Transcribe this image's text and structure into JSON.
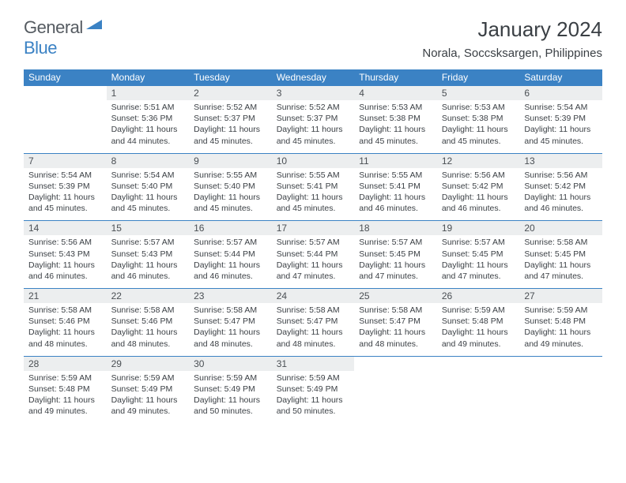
{
  "logo": {
    "general": "General",
    "blue": "Blue"
  },
  "title": "January 2024",
  "location": "Norala, Soccsksargen, Philippines",
  "colors": {
    "header_bg": "#3b82c4",
    "header_text": "#ffffff",
    "daynum_bg": "#eceeef",
    "text": "#3a3f44",
    "divider": "#3b82c4",
    "page_bg": "#ffffff"
  },
  "weekdays": [
    "Sunday",
    "Monday",
    "Tuesday",
    "Wednesday",
    "Thursday",
    "Friday",
    "Saturday"
  ],
  "weeks": [
    [
      null,
      {
        "day": "1",
        "sunrise": "Sunrise: 5:51 AM",
        "sunset": "Sunset: 5:36 PM",
        "daylight": "Daylight: 11 hours and 44 minutes."
      },
      {
        "day": "2",
        "sunrise": "Sunrise: 5:52 AM",
        "sunset": "Sunset: 5:37 PM",
        "daylight": "Daylight: 11 hours and 45 minutes."
      },
      {
        "day": "3",
        "sunrise": "Sunrise: 5:52 AM",
        "sunset": "Sunset: 5:37 PM",
        "daylight": "Daylight: 11 hours and 45 minutes."
      },
      {
        "day": "4",
        "sunrise": "Sunrise: 5:53 AM",
        "sunset": "Sunset: 5:38 PM",
        "daylight": "Daylight: 11 hours and 45 minutes."
      },
      {
        "day": "5",
        "sunrise": "Sunrise: 5:53 AM",
        "sunset": "Sunset: 5:38 PM",
        "daylight": "Daylight: 11 hours and 45 minutes."
      },
      {
        "day": "6",
        "sunrise": "Sunrise: 5:54 AM",
        "sunset": "Sunset: 5:39 PM",
        "daylight": "Daylight: 11 hours and 45 minutes."
      }
    ],
    [
      {
        "day": "7",
        "sunrise": "Sunrise: 5:54 AM",
        "sunset": "Sunset: 5:39 PM",
        "daylight": "Daylight: 11 hours and 45 minutes."
      },
      {
        "day": "8",
        "sunrise": "Sunrise: 5:54 AM",
        "sunset": "Sunset: 5:40 PM",
        "daylight": "Daylight: 11 hours and 45 minutes."
      },
      {
        "day": "9",
        "sunrise": "Sunrise: 5:55 AM",
        "sunset": "Sunset: 5:40 PM",
        "daylight": "Daylight: 11 hours and 45 minutes."
      },
      {
        "day": "10",
        "sunrise": "Sunrise: 5:55 AM",
        "sunset": "Sunset: 5:41 PM",
        "daylight": "Daylight: 11 hours and 45 minutes."
      },
      {
        "day": "11",
        "sunrise": "Sunrise: 5:55 AM",
        "sunset": "Sunset: 5:41 PM",
        "daylight": "Daylight: 11 hours and 46 minutes."
      },
      {
        "day": "12",
        "sunrise": "Sunrise: 5:56 AM",
        "sunset": "Sunset: 5:42 PM",
        "daylight": "Daylight: 11 hours and 46 minutes."
      },
      {
        "day": "13",
        "sunrise": "Sunrise: 5:56 AM",
        "sunset": "Sunset: 5:42 PM",
        "daylight": "Daylight: 11 hours and 46 minutes."
      }
    ],
    [
      {
        "day": "14",
        "sunrise": "Sunrise: 5:56 AM",
        "sunset": "Sunset: 5:43 PM",
        "daylight": "Daylight: 11 hours and 46 minutes."
      },
      {
        "day": "15",
        "sunrise": "Sunrise: 5:57 AM",
        "sunset": "Sunset: 5:43 PM",
        "daylight": "Daylight: 11 hours and 46 minutes."
      },
      {
        "day": "16",
        "sunrise": "Sunrise: 5:57 AM",
        "sunset": "Sunset: 5:44 PM",
        "daylight": "Daylight: 11 hours and 46 minutes."
      },
      {
        "day": "17",
        "sunrise": "Sunrise: 5:57 AM",
        "sunset": "Sunset: 5:44 PM",
        "daylight": "Daylight: 11 hours and 47 minutes."
      },
      {
        "day": "18",
        "sunrise": "Sunrise: 5:57 AM",
        "sunset": "Sunset: 5:45 PM",
        "daylight": "Daylight: 11 hours and 47 minutes."
      },
      {
        "day": "19",
        "sunrise": "Sunrise: 5:57 AM",
        "sunset": "Sunset: 5:45 PM",
        "daylight": "Daylight: 11 hours and 47 minutes."
      },
      {
        "day": "20",
        "sunrise": "Sunrise: 5:58 AM",
        "sunset": "Sunset: 5:45 PM",
        "daylight": "Daylight: 11 hours and 47 minutes."
      }
    ],
    [
      {
        "day": "21",
        "sunrise": "Sunrise: 5:58 AM",
        "sunset": "Sunset: 5:46 PM",
        "daylight": "Daylight: 11 hours and 48 minutes."
      },
      {
        "day": "22",
        "sunrise": "Sunrise: 5:58 AM",
        "sunset": "Sunset: 5:46 PM",
        "daylight": "Daylight: 11 hours and 48 minutes."
      },
      {
        "day": "23",
        "sunrise": "Sunrise: 5:58 AM",
        "sunset": "Sunset: 5:47 PM",
        "daylight": "Daylight: 11 hours and 48 minutes."
      },
      {
        "day": "24",
        "sunrise": "Sunrise: 5:58 AM",
        "sunset": "Sunset: 5:47 PM",
        "daylight": "Daylight: 11 hours and 48 minutes."
      },
      {
        "day": "25",
        "sunrise": "Sunrise: 5:58 AM",
        "sunset": "Sunset: 5:47 PM",
        "daylight": "Daylight: 11 hours and 48 minutes."
      },
      {
        "day": "26",
        "sunrise": "Sunrise: 5:59 AM",
        "sunset": "Sunset: 5:48 PM",
        "daylight": "Daylight: 11 hours and 49 minutes."
      },
      {
        "day": "27",
        "sunrise": "Sunrise: 5:59 AM",
        "sunset": "Sunset: 5:48 PM",
        "daylight": "Daylight: 11 hours and 49 minutes."
      }
    ],
    [
      {
        "day": "28",
        "sunrise": "Sunrise: 5:59 AM",
        "sunset": "Sunset: 5:48 PM",
        "daylight": "Daylight: 11 hours and 49 minutes."
      },
      {
        "day": "29",
        "sunrise": "Sunrise: 5:59 AM",
        "sunset": "Sunset: 5:49 PM",
        "daylight": "Daylight: 11 hours and 49 minutes."
      },
      {
        "day": "30",
        "sunrise": "Sunrise: 5:59 AM",
        "sunset": "Sunset: 5:49 PM",
        "daylight": "Daylight: 11 hours and 50 minutes."
      },
      {
        "day": "31",
        "sunrise": "Sunrise: 5:59 AM",
        "sunset": "Sunset: 5:49 PM",
        "daylight": "Daylight: 11 hours and 50 minutes."
      },
      null,
      null,
      null
    ]
  ]
}
